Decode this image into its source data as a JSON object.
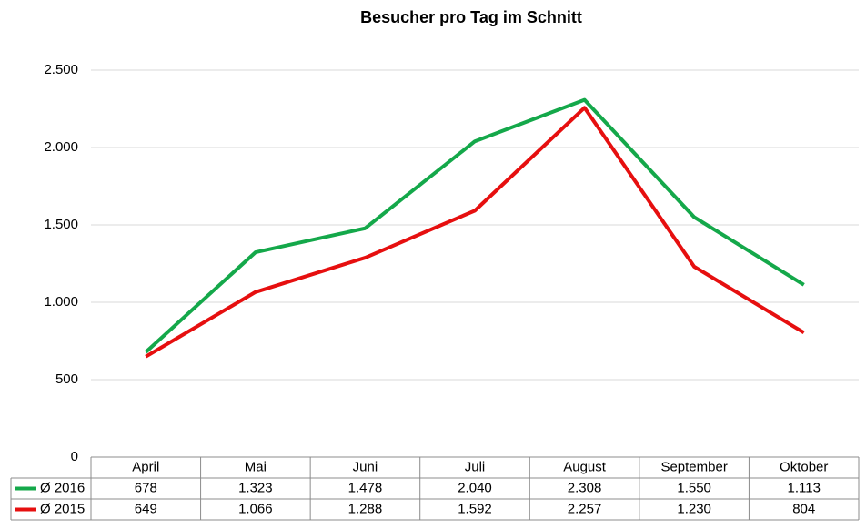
{
  "chart_data": {
    "type": "line",
    "title": "Besucher pro Tag im Schnitt",
    "categories": [
      "April",
      "Mai",
      "Juni",
      "Juli",
      "August",
      "September",
      "Oktober"
    ],
    "series": [
      {
        "name": "Ø 2016",
        "color": "#14a84a",
        "values": [
          678,
          1323,
          1478,
          2040,
          2308,
          1550,
          1113
        ],
        "value_labels": [
          "678",
          "1.323",
          "1.478",
          "2.040",
          "2.308",
          "1.550",
          "1.113"
        ]
      },
      {
        "name": "Ø 2015",
        "color": "#e60f0f",
        "values": [
          649,
          1066,
          1288,
          1592,
          2257,
          1230,
          804
        ],
        "value_labels": [
          "649",
          "1.066",
          "1.288",
          "1.592",
          "2.257",
          "1.230",
          "804"
        ]
      }
    ],
    "ylim": [
      0,
      2500
    ],
    "yticks": [
      0,
      500,
      {
        "value": 1000,
        "label": "1.000"
      },
      {
        "value": 1500,
        "label": "1.500"
      },
      {
        "value": 2000,
        "label": "2.000"
      },
      {
        "value": 2500,
        "label": "2.500"
      }
    ],
    "grid": true
  }
}
